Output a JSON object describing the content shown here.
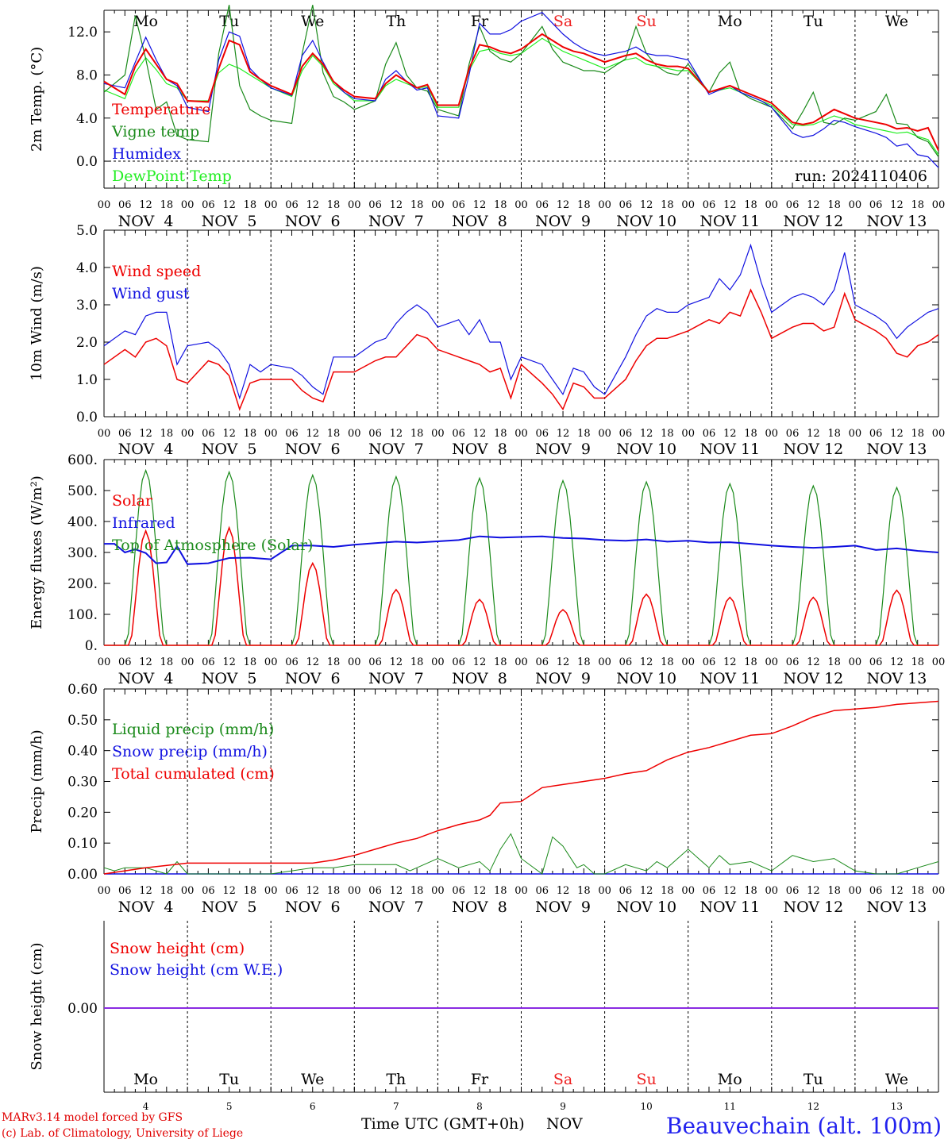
{
  "colors": {
    "red": "#ee0000",
    "green": "#1a8a1a",
    "blue": "#1010e0",
    "lightgreen": "#22ee22",
    "purple": "#8a2be2",
    "weekend": "#ee2222",
    "black": "#000000"
  },
  "days": [
    {
      "dow": "Mo",
      "date_label": "NOV  4",
      "day_num": "4",
      "weekend": false
    },
    {
      "dow": "Tu",
      "date_label": "NOV  5",
      "day_num": "5",
      "weekend": false
    },
    {
      "dow": "We",
      "date_label": "NOV  6",
      "day_num": "6",
      "weekend": false
    },
    {
      "dow": "Th",
      "date_label": "NOV  7",
      "day_num": "7",
      "weekend": false
    },
    {
      "dow": "Fr",
      "date_label": "NOV  8",
      "day_num": "8",
      "weekend": false
    },
    {
      "dow": "Sa",
      "date_label": "NOV  9",
      "day_num": "9",
      "weekend": true
    },
    {
      "dow": "Su",
      "date_label": "NOV 10",
      "day_num": "10",
      "weekend": true
    },
    {
      "dow": "Mo",
      "date_label": "NOV 11",
      "day_num": "11",
      "weekend": false
    },
    {
      "dow": "Tu",
      "date_label": "NOV 12",
      "day_num": "12",
      "weekend": false
    },
    {
      "dow": "We",
      "date_label": "NOV 13",
      "day_num": "13",
      "weekend": false
    }
  ],
  "hour_ticks": [
    "00",
    "06",
    "12",
    "18"
  ],
  "hour_tick_final": "00",
  "footer": {
    "model_line": "MARv3.14 model forced by GFS",
    "lab_line": "(c) Lab. of Climatology, University of Liege",
    "axis_title": "Time UTC (GMT+0h)",
    "month": "NOV",
    "station": "Beauvechain (alt. 100m)"
  },
  "chart_data": [
    {
      "type": "line",
      "id": "temp",
      "ylabel": "2m Temp. (°C)",
      "ylim": [
        -2.5,
        14
      ],
      "yticks": [
        0,
        4,
        8,
        12
      ],
      "ytick_labels": [
        "0.0",
        "4.0",
        "8.0",
        "12.0"
      ],
      "zero_line": true,
      "run_label": "run: 2024110406",
      "x_hours": [
        0,
        6,
        9,
        12,
        15,
        18,
        21,
        24,
        30,
        33,
        36,
        39,
        42,
        45,
        48,
        54,
        57,
        60,
        63,
        66,
        69,
        72,
        78,
        81,
        84,
        87,
        90,
        93,
        96,
        102,
        105,
        108,
        111,
        114,
        117,
        120,
        126,
        129,
        132,
        135,
        138,
        141,
        144,
        150,
        153,
        156,
        159,
        162,
        165,
        168,
        174,
        177,
        180,
        183,
        186,
        189,
        192,
        198,
        201,
        204,
        207,
        210,
        213,
        216,
        222,
        225,
        228,
        231,
        234,
        237,
        240
      ],
      "series": [
        {
          "name": "Temperature",
          "color": "red",
          "values": [
            7.4,
            6.2,
            8.8,
            10.4,
            9.0,
            7.6,
            7.2,
            5.6,
            5.5,
            8.6,
            11.2,
            10.8,
            8.3,
            7.6,
            7.0,
            6.2,
            8.8,
            10.0,
            9.0,
            7.4,
            6.6,
            6.0,
            5.8,
            7.2,
            8.0,
            7.4,
            6.8,
            7.1,
            5.2,
            5.2,
            8.6,
            10.8,
            10.6,
            10.2,
            10.0,
            10.4,
            11.8,
            11.2,
            10.6,
            10.2,
            10.0,
            9.6,
            9.2,
            9.8,
            10.0,
            9.4,
            9.0,
            8.8,
            8.8,
            8.6,
            6.4,
            6.7,
            7.0,
            6.6,
            6.2,
            5.8,
            5.4,
            3.6,
            3.4,
            3.6,
            4.2,
            4.8,
            4.4,
            4.0,
            3.6,
            3.4,
            3.0,
            3.1,
            2.8,
            3.1,
            1.0
          ]
        },
        {
          "name": "Vigne temp",
          "color": "green",
          "values": [
            6.4,
            8.0,
            13.5,
            9.5,
            4.8,
            5.5,
            2.4,
            2.0,
            1.8,
            10.0,
            14.5,
            7.0,
            4.8,
            4.2,
            3.8,
            3.5,
            10.0,
            14.5,
            8.2,
            6.0,
            5.5,
            4.8,
            5.6,
            9.0,
            11.0,
            8.0,
            6.8,
            6.5,
            4.8,
            4.2,
            9.0,
            12.5,
            10.2,
            9.5,
            9.2,
            10.0,
            12.5,
            10.4,
            9.2,
            8.8,
            8.4,
            8.4,
            8.2,
            9.5,
            12.5,
            10.0,
            8.8,
            8.2,
            8.0,
            9.0,
            6.4,
            8.2,
            9.2,
            6.4,
            5.8,
            5.4,
            5.0,
            3.0,
            4.6,
            6.4,
            3.6,
            3.4,
            4.0,
            3.8,
            4.6,
            6.2,
            3.5,
            3.4,
            2.2,
            1.8,
            0.4
          ]
        },
        {
          "name": "Humidex",
          "color": "blue",
          "values": [
            7.2,
            6.8,
            9.2,
            11.5,
            9.4,
            7.6,
            7.0,
            5.0,
            4.6,
            9.4,
            12.0,
            11.6,
            8.6,
            7.6,
            6.8,
            6.1,
            9.8,
            11.2,
            9.2,
            7.4,
            6.4,
            5.8,
            5.6,
            7.6,
            8.4,
            7.4,
            6.6,
            6.8,
            4.2,
            4.0,
            8.0,
            12.8,
            11.8,
            11.8,
            12.2,
            13.0,
            13.8,
            12.8,
            11.8,
            11.0,
            10.4,
            10.0,
            9.8,
            10.2,
            10.6,
            10.0,
            9.8,
            9.8,
            9.6,
            9.4,
            6.2,
            6.6,
            7.0,
            6.4,
            6.0,
            5.6,
            5.0,
            2.6,
            2.2,
            2.4,
            3.0,
            3.8,
            3.6,
            3.2,
            2.6,
            2.2,
            1.4,
            1.6,
            0.6,
            0.4,
            -0.6
          ]
        },
        {
          "name": "DewPoint Temp",
          "color": "lightgreen",
          "values": [
            6.6,
            5.8,
            8.2,
            9.6,
            8.5,
            7.2,
            6.8,
            5.6,
            5.6,
            8.2,
            9.0,
            8.6,
            8.0,
            7.4,
            6.8,
            6.0,
            8.4,
            9.8,
            8.8,
            7.2,
            6.4,
            5.6,
            5.6,
            7.0,
            7.6,
            7.2,
            6.8,
            6.9,
            5.0,
            5.0,
            8.4,
            10.2,
            10.4,
            10.0,
            9.8,
            10.0,
            11.4,
            10.8,
            10.2,
            9.8,
            9.4,
            9.0,
            8.6,
            9.4,
            9.6,
            9.0,
            8.8,
            8.6,
            8.4,
            8.4,
            6.4,
            6.6,
            6.8,
            6.4,
            6.0,
            5.6,
            5.2,
            3.4,
            3.3,
            3.4,
            3.8,
            4.2,
            3.9,
            3.4,
            3.0,
            2.8,
            2.6,
            2.7,
            2.3,
            2.0,
            0.6
          ]
        }
      ]
    },
    {
      "type": "line",
      "id": "wind",
      "ylabel": "10m Wind (m/s)",
      "ylim": [
        0,
        5
      ],
      "yticks": [
        0,
        1,
        2,
        3,
        4,
        5
      ],
      "ytick_labels": [
        "0.0",
        "1.0",
        "2.0",
        "3.0",
        "4.0",
        "5.0"
      ],
      "x_hours": [
        0,
        6,
        9,
        12,
        15,
        18,
        21,
        24,
        30,
        33,
        36,
        39,
        42,
        45,
        48,
        54,
        57,
        60,
        63,
        66,
        69,
        72,
        78,
        81,
        84,
        87,
        90,
        93,
        96,
        102,
        105,
        108,
        111,
        114,
        117,
        120,
        126,
        129,
        132,
        135,
        138,
        141,
        144,
        150,
        153,
        156,
        159,
        162,
        165,
        168,
        174,
        177,
        180,
        183,
        186,
        189,
        192,
        198,
        201,
        204,
        207,
        210,
        213,
        216,
        222,
        225,
        228,
        231,
        234,
        237,
        240
      ],
      "series": [
        {
          "name": "Wind speed",
          "color": "red",
          "values": [
            1.4,
            1.8,
            1.6,
            2.0,
            2.1,
            1.9,
            1.0,
            0.9,
            1.5,
            1.4,
            1.1,
            0.2,
            0.9,
            1.0,
            1.0,
            1.0,
            0.7,
            0.5,
            0.4,
            1.2,
            1.2,
            1.2,
            1.5,
            1.6,
            1.6,
            1.9,
            2.2,
            2.1,
            1.8,
            1.6,
            1.5,
            1.4,
            1.2,
            1.3,
            0.5,
            1.4,
            0.9,
            0.6,
            0.2,
            0.9,
            0.8,
            0.5,
            0.5,
            1.0,
            1.5,
            1.9,
            2.1,
            2.1,
            2.2,
            2.3,
            2.6,
            2.5,
            2.8,
            2.7,
            3.4,
            2.8,
            2.1,
            2.4,
            2.5,
            2.5,
            2.3,
            2.4,
            3.3,
            2.6,
            2.3,
            2.1,
            1.7,
            1.6,
            1.9,
            2.0,
            2.2
          ]
        },
        {
          "name": "Wind gust",
          "color": "blue",
          "values": [
            1.9,
            2.3,
            2.2,
            2.7,
            2.8,
            2.8,
            1.4,
            1.9,
            2.0,
            1.8,
            1.4,
            0.5,
            1.4,
            1.2,
            1.4,
            1.3,
            1.1,
            0.8,
            0.6,
            1.6,
            1.6,
            1.6,
            2.0,
            2.1,
            2.5,
            2.8,
            3.0,
            2.8,
            2.4,
            2.6,
            2.2,
            2.6,
            2.0,
            2.0,
            1.0,
            1.6,
            1.4,
            1.0,
            0.6,
            1.3,
            1.2,
            0.8,
            0.6,
            1.6,
            2.2,
            2.7,
            2.9,
            2.8,
            2.8,
            3.0,
            3.2,
            3.7,
            3.4,
            3.8,
            4.6,
            3.6,
            2.8,
            3.2,
            3.3,
            3.2,
            3.0,
            3.4,
            4.4,
            3.0,
            2.7,
            2.5,
            2.1,
            2.4,
            2.6,
            2.8,
            2.9
          ]
        }
      ]
    },
    {
      "type": "line",
      "id": "energy",
      "ylabel": "Energy fluxes (W/m²)",
      "ylim": [
        0,
        600
      ],
      "yticks": [
        0,
        100,
        200,
        300,
        400,
        500,
        600
      ],
      "ytick_labels": [
        "0.",
        "100.",
        "200.",
        "300.",
        "400.",
        "500.",
        "600."
      ],
      "solar_peaks": [
        370,
        380,
        265,
        180,
        148,
        115,
        165,
        155,
        155,
        178
      ],
      "toa_peaks": [
        565,
        560,
        550,
        545,
        540,
        532,
        528,
        522,
        515,
        510
      ],
      "infrared": {
        "x_hours": [
          0,
          3,
          6,
          9,
          12,
          15,
          18,
          21,
          24,
          30,
          36,
          42,
          48,
          54,
          60,
          66,
          72,
          78,
          84,
          90,
          96,
          102,
          108,
          114,
          120,
          126,
          132,
          138,
          144,
          150,
          156,
          162,
          168,
          174,
          180,
          186,
          192,
          198,
          204,
          210,
          216,
          222,
          228,
          234,
          240
        ],
        "values": [
          328,
          328,
          300,
          310,
          298,
          265,
          268,
          320,
          262,
          265,
          282,
          283,
          278,
          322,
          322,
          318,
          325,
          330,
          335,
          332,
          336,
          340,
          352,
          348,
          350,
          352,
          347,
          345,
          340,
          338,
          342,
          335,
          338,
          332,
          333,
          328,
          322,
          318,
          315,
          318,
          322,
          308,
          313,
          305,
          300
        ]
      },
      "series": [
        {
          "name": "Solar",
          "color": "red"
        },
        {
          "name": "Infrared",
          "color": "blue"
        },
        {
          "name": "Top of Atmosphere (Solar)",
          "color": "green"
        }
      ]
    },
    {
      "type": "line",
      "id": "precip",
      "ylabel": "Precip (mm/h)",
      "ylim": [
        0,
        0.6
      ],
      "yticks": [
        0,
        0.1,
        0.2,
        0.3,
        0.4,
        0.5,
        0.6
      ],
      "ytick_labels": [
        "0.00",
        "0.10",
        "0.20",
        "0.30",
        "0.40",
        "0.50",
        "0.60"
      ],
      "liquid": {
        "x_hours": [
          0,
          3,
          6,
          12,
          18,
          21,
          24,
          30,
          36,
          42,
          48,
          54,
          60,
          66,
          72,
          78,
          84,
          88,
          90,
          96,
          102,
          108,
          111,
          114,
          117,
          120,
          126,
          129,
          132,
          136,
          138,
          141,
          144,
          150,
          156,
          159,
          162,
          168,
          171,
          174,
          177,
          180,
          186,
          192,
          198,
          204,
          210,
          216,
          222,
          228,
          234,
          240
        ],
        "values": [
          0.02,
          0.01,
          0.02,
          0.02,
          0.0,
          0.04,
          0.0,
          0.0,
          0.0,
          0.0,
          0.0,
          0.01,
          0.02,
          0.02,
          0.03,
          0.03,
          0.03,
          0.01,
          0.02,
          0.05,
          0.02,
          0.04,
          0.01,
          0.08,
          0.13,
          0.05,
          0.0,
          0.12,
          0.09,
          0.02,
          0.03,
          0.0,
          0.0,
          0.03,
          0.01,
          0.04,
          0.02,
          0.08,
          0.05,
          0.02,
          0.06,
          0.03,
          0.04,
          0.01,
          0.06,
          0.04,
          0.05,
          0.01,
          0.0,
          0.0,
          0.02,
          0.04
        ]
      },
      "cumulated": {
        "x_hours": [
          0,
          12,
          24,
          36,
          48,
          60,
          66,
          72,
          78,
          84,
          90,
          96,
          102,
          108,
          111,
          114,
          120,
          126,
          132,
          138,
          144,
          150,
          156,
          162,
          168,
          174,
          180,
          186,
          192,
          198,
          204,
          210,
          216,
          222,
          228,
          234,
          240
        ],
        "values": [
          0.0,
          0.02,
          0.035,
          0.035,
          0.035,
          0.035,
          0.045,
          0.06,
          0.08,
          0.1,
          0.115,
          0.14,
          0.16,
          0.175,
          0.19,
          0.23,
          0.235,
          0.28,
          0.29,
          0.3,
          0.31,
          0.325,
          0.335,
          0.37,
          0.395,
          0.41,
          0.43,
          0.45,
          0.455,
          0.48,
          0.51,
          0.53,
          0.535,
          0.54,
          0.55,
          0.555,
          0.56
        ]
      },
      "series": [
        {
          "name": "Liquid precip (mm/h)",
          "color": "green"
        },
        {
          "name": "Snow precip (mm/h)",
          "color": "blue"
        },
        {
          "name": "Total cumulated (cm)",
          "color": "red"
        }
      ]
    },
    {
      "type": "line",
      "id": "snow",
      "ylabel": "Snow height (cm)",
      "ytick_labels": [
        "0.00"
      ],
      "value": 0.0,
      "series": [
        {
          "name": "Snow height (cm)",
          "color": "red"
        },
        {
          "name": "Snow height (cm W.E.)",
          "color": "blue"
        }
      ]
    }
  ]
}
